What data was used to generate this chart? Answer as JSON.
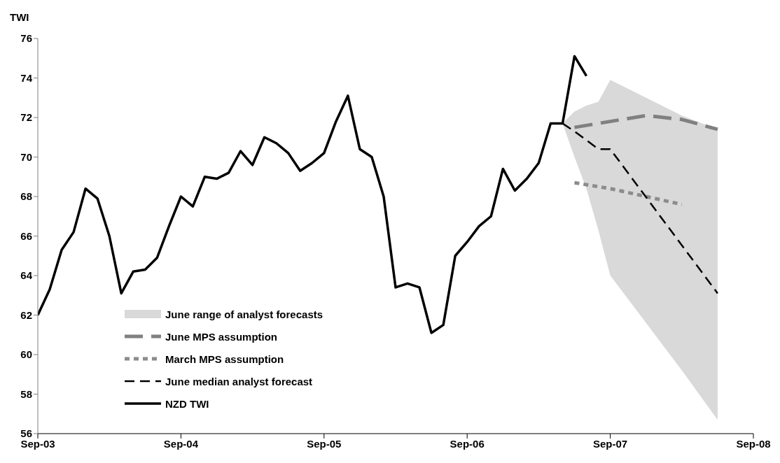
{
  "chart_data": {
    "type": "line",
    "ylabel": "TWI",
    "xlim": [
      "2003-09",
      "2008-09"
    ],
    "xticks": [
      {
        "value": "2003-09",
        "label": "Sep-03"
      },
      {
        "value": "2004-09",
        "label": "Sep-04"
      },
      {
        "value": "2005-09",
        "label": "Sep-05"
      },
      {
        "value": "2006-09",
        "label": "Sep-06"
      },
      {
        "value": "2007-09",
        "label": "Sep-07"
      },
      {
        "value": "2008-09",
        "label": "Sep-08"
      }
    ],
    "ylim": [
      56,
      76
    ],
    "yticks": [
      56,
      58,
      60,
      62,
      64,
      66,
      68,
      70,
      72,
      74,
      76
    ],
    "grid": false,
    "legend": "bottom left",
    "marker": "none",
    "series": [
      {
        "name": "June range of analyst forecasts",
        "type": "area",
        "color": "#d9d9d9",
        "x": [
          "2007-05",
          "2007-06",
          "2007-07",
          "2007-08",
          "2007-09",
          "2007-12",
          "2008-03",
          "2008-06"
        ],
        "values": [
          null,
          null,
          null,
          null,
          null,
          null,
          null,
          null
        ],
        "lower": [
          71.7,
          70.0,
          68.4,
          66.3,
          64.0,
          61.6,
          59.2,
          56.7
        ],
        "upper": [
          71.7,
          72.3,
          72.6,
          72.8,
          73.9,
          73.0,
          72.1,
          71.4
        ]
      },
      {
        "name": "June MPS assumption",
        "type": "line",
        "color": "#808080",
        "line_style": "dashed",
        "x": [
          "2007-06",
          "2007-09",
          "2007-12",
          "2008-03",
          "2008-06"
        ],
        "values": [
          71.5,
          71.8,
          72.1,
          71.9,
          71.4
        ]
      },
      {
        "name": "March MPS assumption",
        "type": "line",
        "color": "#8c8c8c",
        "line_style": "dotted",
        "x": [
          "2007-06",
          "2007-09",
          "2007-12",
          "2008-03"
        ],
        "values": [
          68.7,
          68.4,
          68.0,
          67.6
        ]
      },
      {
        "name": "June median analyst forecast",
        "type": "line",
        "color": "#000000",
        "line_style": "dashed",
        "x": [
          "2007-05",
          "2007-06",
          "2007-08",
          "2007-09",
          "2008-06"
        ],
        "values": [
          71.7,
          71.3,
          70.4,
          70.4,
          63.1
        ]
      },
      {
        "name": "NZD TWI",
        "type": "line",
        "color": "#000000",
        "line_style": "solid",
        "x": [
          "2003-09",
          "2003-10",
          "2003-11",
          "2003-12",
          "2004-01",
          "2004-02",
          "2004-03",
          "2004-04",
          "2004-05",
          "2004-06",
          "2004-07",
          "2004-08",
          "2004-09",
          "2004-10",
          "2004-11",
          "2004-12",
          "2005-01",
          "2005-02",
          "2005-03",
          "2005-04",
          "2005-05",
          "2005-06",
          "2005-07",
          "2005-08",
          "2005-09",
          "2005-10",
          "2005-11",
          "2005-12",
          "2006-01",
          "2006-02",
          "2006-03",
          "2006-04",
          "2006-05",
          "2006-06",
          "2006-07",
          "2006-08",
          "2006-09",
          "2006-10",
          "2006-11",
          "2006-12",
          "2007-01",
          "2007-02",
          "2007-03",
          "2007-04",
          "2007-05",
          "2007-06",
          "2007-07"
        ],
        "values": [
          62.0,
          63.3,
          65.3,
          66.2,
          68.4,
          67.9,
          66.0,
          63.1,
          64.2,
          64.3,
          64.9,
          66.5,
          68.0,
          67.5,
          69.0,
          68.9,
          69.2,
          70.3,
          69.6,
          71.0,
          70.7,
          70.2,
          69.3,
          69.7,
          70.2,
          71.8,
          73.1,
          70.4,
          70.0,
          68.0,
          63.4,
          63.6,
          63.4,
          61.1,
          61.5,
          65.0,
          65.7,
          66.5,
          67.0,
          69.4,
          68.3,
          68.9,
          69.7,
          71.7,
          71.7,
          75.1,
          74.1
        ]
      }
    ]
  }
}
